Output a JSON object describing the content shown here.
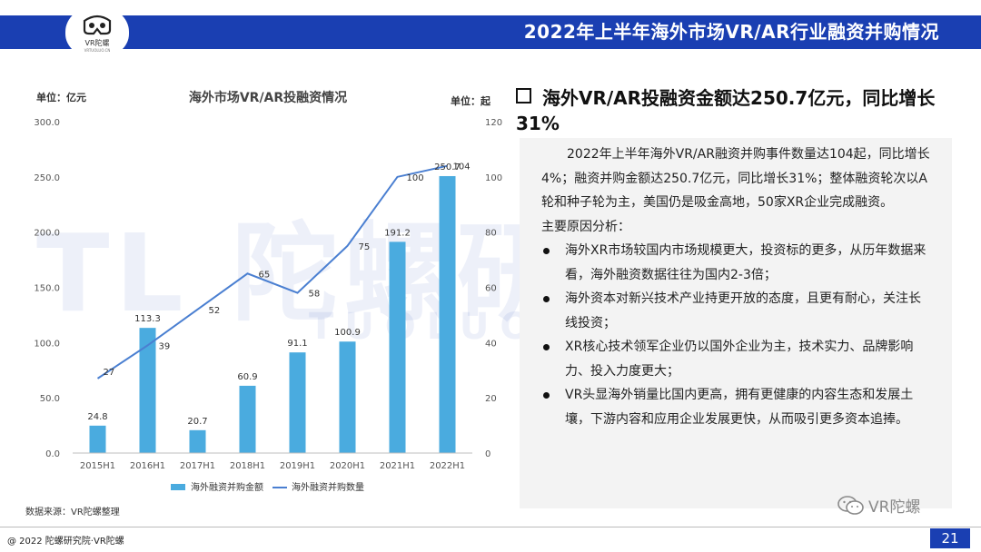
{
  "header": {
    "title": "2022年上半年海外市场VR/AR行业融资并购情况"
  },
  "logo": {
    "text": "VR陀螺",
    "sub": "VRTUOLUO.CN"
  },
  "watermark": {
    "main": "TL 陀螺研究院",
    "sub": "TUOLUO RESEARCH"
  },
  "chart_data": {
    "type": "bar+line",
    "title": "海外市场VR/AR投融资情况",
    "left_axis_label": "单位：亿元",
    "right_axis_label": "单位：起",
    "categories": [
      "2015H1",
      "2016H1",
      "2017H1",
      "2018H1",
      "2019H1",
      "2020H1",
      "2021H1",
      "2022H1"
    ],
    "series": [
      {
        "name": "海外融资并购金额",
        "type": "bar",
        "axis": "left",
        "values": [
          24.8,
          113.3,
          20.7,
          60.9,
          91.1,
          100.9,
          191.2,
          250.7
        ],
        "labels": [
          "24.8",
          "113.3",
          "20.7",
          "60.9",
          "91.1",
          "100.9",
          "191.2",
          "250.7"
        ],
        "color": "#4aabdf"
      },
      {
        "name": "海外融资并购数量",
        "type": "line",
        "axis": "right",
        "values": [
          27,
          39,
          52,
          65,
          58,
          75,
          100,
          104
        ],
        "labels": [
          "27",
          "39",
          "52",
          "65",
          "58",
          "75",
          "100",
          "104"
        ],
        "color": "#4a7fd1"
      }
    ],
    "y_left": {
      "min": 0,
      "max": 300,
      "ticks": [
        "0.0",
        "50.0",
        "100.0",
        "150.0",
        "200.0",
        "250.0",
        "300.0"
      ]
    },
    "y_right": {
      "min": 0,
      "max": 120,
      "ticks": [
        "0",
        "20",
        "40",
        "60",
        "80",
        "100",
        "120"
      ]
    },
    "grid": false,
    "legend_position": "bottom"
  },
  "source": "数据来源：VR陀螺整理",
  "section": {
    "title": "海外VR/AR投融资金额达250.7亿元，同比增长31%",
    "intro": "2022年上半年海外VR/AR融资并购事件数量达104起，同比增长4%；融资并购金额达250.7亿元，同比增长31%；整体融资轮次以A轮和种子轮为主，美国仍是吸金高地，50家XR企业完成融资。",
    "subhead": "主要原因分析：",
    "bullets": [
      "海外XR市场较国内市场规模更大，投资标的更多，从历年数据来看，海外融资数据往往为国内2-3倍；",
      "海外资本对新兴技术产业持更开放的态度，且更有耐心，关注长线投资；",
      "XR核心技术领军企业仍以国外企业为主，技术实力、品牌影响力、投入力度更大；",
      "VR头显海外销量比国内更高，拥有更健康的内容生态和发展土壤，下游内容和应用企业发展更快，从而吸引更多资本追捧。"
    ]
  },
  "wechat_badge": "VR陀螺",
  "footer": {
    "copyright": "@ 2022 陀螺研究院·VR陀螺",
    "page": "21"
  }
}
